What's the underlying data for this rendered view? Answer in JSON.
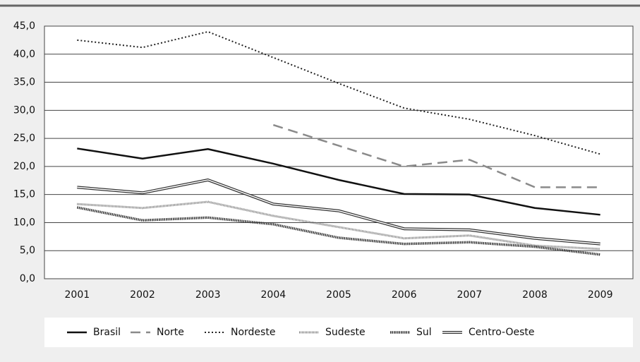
{
  "chart_data": {
    "type": "line",
    "categories": [
      "2001",
      "2002",
      "2003",
      "2004",
      "2005",
      "2006",
      "2007",
      "2008",
      "2009"
    ],
    "ylim": [
      0,
      45
    ],
    "yticks": [
      {
        "value": 0,
        "label": "0,0"
      },
      {
        "value": 5,
        "label": "5,0"
      },
      {
        "value": 10,
        "label": "10,0"
      },
      {
        "value": 15,
        "label": "15,0"
      },
      {
        "value": 20,
        "label": "20,0"
      },
      {
        "value": 25,
        "label": "25,0"
      },
      {
        "value": 30,
        "label": "30,0"
      },
      {
        "value": 35,
        "label": "35,0"
      },
      {
        "value": 40,
        "label": "40,0"
      },
      {
        "value": 45,
        "label": "45,0"
      }
    ],
    "grid": true,
    "legend": "bottom",
    "series": [
      {
        "name": "Brasil",
        "color": "#111111",
        "style": "solid",
        "values": [
          23.2,
          21.4,
          23.1,
          20.5,
          17.6,
          15.1,
          15.0,
          12.6,
          11.4
        ]
      },
      {
        "name": "Norte",
        "color": "#8a8a8a",
        "style": "dashed",
        "values": [
          null,
          null,
          null,
          27.4,
          23.7,
          20.0,
          21.2,
          16.3,
          16.3
        ]
      },
      {
        "name": "Nordeste",
        "color": "#222222",
        "style": "dotted",
        "values": [
          42.5,
          41.2,
          44.0,
          39.4,
          34.8,
          30.4,
          28.4,
          25.5,
          22.2
        ]
      },
      {
        "name": "Sudeste",
        "color": "#777777",
        "style": "dense",
        "values": [
          13.3,
          12.6,
          13.7,
          11.2,
          9.2,
          7.2,
          7.7,
          5.9,
          5.3
        ]
      },
      {
        "name": "Sul",
        "color": "#333333",
        "style": "hatched",
        "values": [
          12.7,
          10.4,
          10.9,
          9.7,
          7.3,
          6.2,
          6.5,
          5.7,
          4.3
        ]
      },
      {
        "name": "Centro-Oeste",
        "color": "#333333",
        "style": "double",
        "values": [
          16.3,
          15.3,
          17.6,
          13.3,
          12.1,
          8.9,
          8.7,
          7.2,
          6.2
        ]
      }
    ]
  }
}
